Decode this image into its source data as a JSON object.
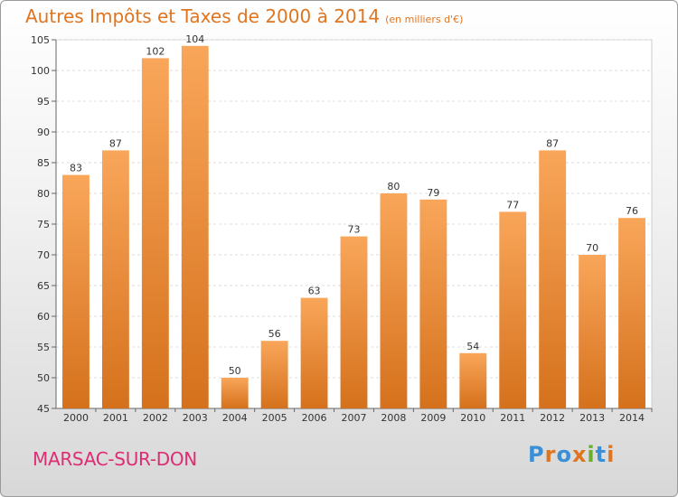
{
  "chart_data": {
    "type": "bar",
    "title": "Autres Impôts et Taxes de 2000 à 2014",
    "subtitle": "(en milliers d'€)",
    "categories": [
      "2000",
      "2001",
      "2002",
      "2003",
      "2004",
      "2005",
      "2006",
      "2007",
      "2008",
      "2009",
      "2010",
      "2011",
      "2012",
      "2013",
      "2014"
    ],
    "values": [
      83,
      87,
      102,
      104,
      50,
      56,
      63,
      73,
      80,
      79,
      54,
      77,
      87,
      70,
      76
    ],
    "ylim": [
      45,
      105
    ],
    "yticks": [
      45,
      50,
      55,
      60,
      65,
      70,
      75,
      80,
      85,
      90,
      95,
      100,
      105
    ],
    "grid": true,
    "bar_color_light": "#f9a65a",
    "bar_color_dark": "#d5711c"
  },
  "footer": {
    "commune": "MARSAC-SUR-DON",
    "logo": "Proxiti",
    "logo_colors": [
      "#3a8fd6",
      "#e07520",
      "#3a8fd6",
      "#e07520",
      "#6ab02f",
      "#3a8fd6",
      "#e07520"
    ]
  }
}
